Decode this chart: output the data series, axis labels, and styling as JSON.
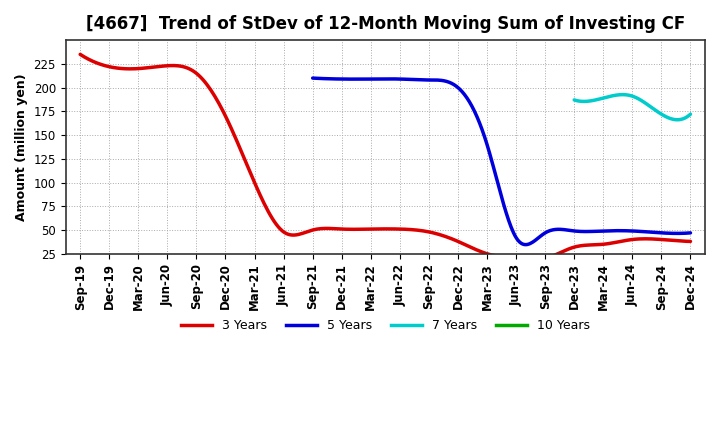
{
  "title": "[4667]  Trend of StDev of 12-Month Moving Sum of Investing CF",
  "ylabel": "Amount (million yen)",
  "background_color": "#ffffff",
  "plot_bg_color": "#ffffff",
  "grid_color": "#aaaaaa",
  "x_labels": [
    "Sep-19",
    "Dec-19",
    "Mar-20",
    "Jun-20",
    "Sep-20",
    "Dec-20",
    "Mar-21",
    "Jun-21",
    "Sep-21",
    "Dec-21",
    "Mar-22",
    "Jun-22",
    "Sep-22",
    "Dec-22",
    "Mar-23",
    "Jun-23",
    "Sep-23",
    "Dec-23",
    "Mar-24",
    "Jun-24",
    "Sep-24",
    "Dec-24"
  ],
  "series": {
    "3 Years": {
      "color": "#dd0000",
      "data_x": [
        0,
        1,
        2,
        3,
        4,
        5,
        6,
        7,
        8,
        9,
        10,
        11,
        12,
        13,
        14,
        15,
        16,
        17,
        18,
        19,
        20,
        21
      ],
      "data_y": [
        235,
        222,
        220,
        223,
        215,
        170,
        100,
        48,
        50,
        51,
        51,
        51,
        48,
        38,
        25,
        20,
        20,
        32,
        35,
        40,
        40,
        38
      ]
    },
    "5 Years": {
      "color": "#0000dd",
      "data_x": [
        8,
        9,
        10,
        11,
        12,
        13,
        14,
        15,
        16,
        17,
        18,
        19,
        20,
        21
      ],
      "data_y": [
        210,
        209,
        209,
        209,
        208,
        200,
        140,
        42,
        47,
        49,
        49,
        49,
        47,
        47
      ]
    },
    "7 Years": {
      "color": "#00cccc",
      "data_x": [
        17,
        18,
        19,
        20,
        21
      ],
      "data_y": [
        187,
        189,
        191,
        172,
        172
      ]
    },
    "10 Years": {
      "color": "#00aa00",
      "data_x": [],
      "data_y": []
    }
  },
  "ylim": [
    25,
    250
  ],
  "yticks": [
    25,
    50,
    75,
    100,
    125,
    150,
    175,
    200,
    225
  ],
  "legend_labels": [
    "3 Years",
    "5 Years",
    "7 Years",
    "10 Years"
  ],
  "legend_colors": [
    "#dd0000",
    "#0000dd",
    "#00cccc",
    "#00aa00"
  ],
  "title_fontsize": 12,
  "ylabel_fontsize": 9,
  "tick_fontsize": 8.5
}
